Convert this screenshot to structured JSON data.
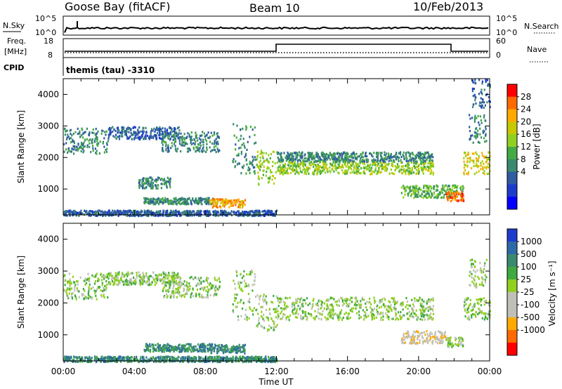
{
  "header": {
    "station": "Goose Bay (fitACF)",
    "beam": "Beam 10",
    "date": "10/Feb/2013"
  },
  "noise_panel": {
    "left_label": "N.Sky",
    "right_label": "N.Search",
    "left_ticks": [
      "10^5",
      "10^0"
    ],
    "right_ticks": [
      "10^5",
      "10^0"
    ]
  },
  "freq_panel": {
    "left_label_line1": "Freq.",
    "left_label_line2": "[MHz]",
    "right_label": "Nave",
    "left_ticks": [
      18,
      8
    ],
    "right_ticks": [
      60,
      0
    ]
  },
  "cpid": {
    "label": "CPID",
    "value": "themis (tau) -3310"
  },
  "x_axis": {
    "label": "Time UT",
    "ticks": [
      "00:00",
      "04:00",
      "08:00",
      "12:00",
      "16:00",
      "20:00",
      "00:00"
    ]
  },
  "chart_data": [
    {
      "type": "heatmap",
      "panel": "power",
      "ylabel": "Slant Range [km]",
      "yticks": [
        1000,
        2000,
        3000,
        4000
      ],
      "ylim": [
        180,
        4500
      ],
      "xlim_hours": [
        0,
        24
      ],
      "colorbar": {
        "label": "Power [dB]",
        "ticks": [
          "28",
          "24",
          "20",
          "16",
          "12",
          "8",
          "4"
        ],
        "colors": [
          "#ff0000",
          "#ff6a00",
          "#ffaa00",
          "#c8c800",
          "#90d020",
          "#44aa44",
          "#3a8a70",
          "#305ca0",
          "#1e3ccc",
          "#0000ff"
        ]
      },
      "regions": [
        {
          "t": [
            0.0,
            2.5
          ],
          "r": [
            2150,
            2950
          ],
          "level": 3
        },
        {
          "t": [
            2.5,
            6.5
          ],
          "r": [
            2600,
            3000
          ],
          "level": 2
        },
        {
          "t": [
            5.5,
            8.8
          ],
          "r": [
            2200,
            2850
          ],
          "level": 3
        },
        {
          "t": [
            9.5,
            10.8
          ],
          "r": [
            1500,
            3100
          ],
          "level": 3
        },
        {
          "t": [
            10.8,
            12.0
          ],
          "r": [
            1150,
            2300
          ],
          "level": 5
        },
        {
          "t": [
            12.0,
            20.8
          ],
          "r": [
            1500,
            1900
          ],
          "level": 5
        },
        {
          "t": [
            12.0,
            20.8
          ],
          "r": [
            1900,
            2200
          ],
          "level": 3
        },
        {
          "t": [
            19.0,
            22.5
          ],
          "r": [
            750,
            1150
          ],
          "level": 4
        },
        {
          "t": [
            21.5,
            22.5
          ],
          "r": [
            650,
            950
          ],
          "level": 8
        },
        {
          "t": [
            22.5,
            24.0
          ],
          "r": [
            1500,
            2200
          ],
          "level": 6
        },
        {
          "t": [
            22.8,
            23.8
          ],
          "r": [
            2500,
            3400
          ],
          "level": 3
        },
        {
          "t": [
            4.2,
            6.0
          ],
          "r": [
            1050,
            1400
          ],
          "level": 3
        },
        {
          "t": [
            4.5,
            8.5
          ],
          "r": [
            550,
            750
          ],
          "level": 3
        },
        {
          "t": [
            8.2,
            10.2
          ],
          "r": [
            450,
            720
          ],
          "level": 7
        },
        {
          "t": [
            0.0,
            12.0
          ],
          "r": [
            180,
            350
          ],
          "level": 2
        },
        {
          "t": [
            23.0,
            24.0
          ],
          "r": [
            3600,
            4500
          ],
          "level": 2
        }
      ]
    },
    {
      "type": "heatmap",
      "panel": "velocity",
      "ylabel": "Slant Range [km]",
      "yticks": [
        1000,
        2000,
        3000,
        4000
      ],
      "ylim": [
        180,
        4500
      ],
      "xlim_hours": [
        0,
        24
      ],
      "colorbar": {
        "label": "Velocity [m s⁻¹]",
        "ticks": [
          "1000",
          "500",
          "100",
          "25",
          "-25",
          "-100",
          "-500",
          "-1000"
        ],
        "colors": [
          "#1e3ccc",
          "#2e6aa8",
          "#3a8a70",
          "#40aa40",
          "#90d020",
          "#c0c0b8",
          "#c0c0b8",
          "#ffaa00",
          "#ff6a00",
          "#ff0000"
        ]
      },
      "regions": [
        {
          "t": [
            0.0,
            2.5
          ],
          "r": [
            2150,
            2950
          ],
          "level": 5
        },
        {
          "t": [
            2.5,
            6.5
          ],
          "r": [
            2600,
            3000
          ],
          "level": 5
        },
        {
          "t": [
            5.5,
            8.8
          ],
          "r": [
            2200,
            2850
          ],
          "level": 5
        },
        {
          "t": [
            9.5,
            10.8
          ],
          "r": [
            1500,
            3100
          ],
          "level": 5
        },
        {
          "t": [
            10.8,
            12.0
          ],
          "r": [
            1150,
            2300
          ],
          "level": 5
        },
        {
          "t": [
            12.0,
            20.8
          ],
          "r": [
            1500,
            2200
          ],
          "level": 5
        },
        {
          "t": [
            19.0,
            21.5
          ],
          "r": [
            750,
            1150
          ],
          "level": 3
        },
        {
          "t": [
            21.5,
            22.5
          ],
          "r": [
            650,
            950
          ],
          "level": 5
        },
        {
          "t": [
            22.5,
            24.0
          ],
          "r": [
            1500,
            2200
          ],
          "level": 5
        },
        {
          "t": [
            22.8,
            23.8
          ],
          "r": [
            2500,
            3400
          ],
          "level": 5
        },
        {
          "t": [
            4.5,
            8.5
          ],
          "r": [
            500,
            750
          ],
          "level": 7
        },
        {
          "t": [
            8.2,
            10.2
          ],
          "r": [
            450,
            720
          ],
          "level": 7
        },
        {
          "t": [
            0.0,
            12.0
          ],
          "r": [
            180,
            350
          ],
          "level": 7
        }
      ]
    }
  ]
}
